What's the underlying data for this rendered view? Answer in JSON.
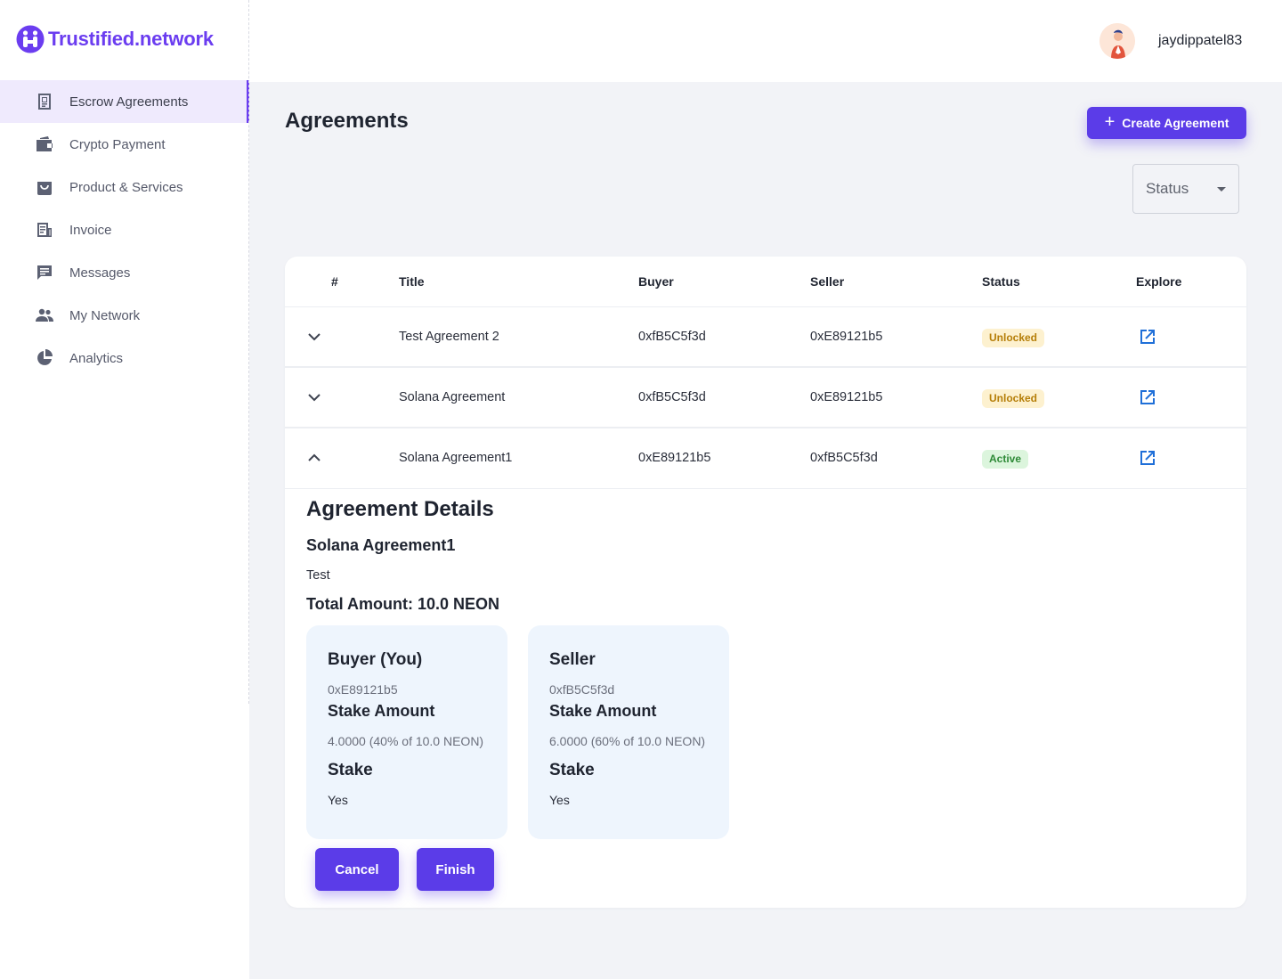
{
  "brand": {
    "name": "Trustified.network",
    "color": "#6b3df0"
  },
  "header": {
    "username": "jaydippatel83"
  },
  "sidebar": {
    "items": [
      {
        "label": "Escrow Agreements",
        "icon": "escrow-document-icon",
        "active": true
      },
      {
        "label": "Crypto Payment",
        "icon": "wallet-icon",
        "active": false
      },
      {
        "label": "Product & Services",
        "icon": "shopping-bag-icon",
        "active": false
      },
      {
        "label": "Invoice",
        "icon": "invoice-icon",
        "active": false
      },
      {
        "label": "Messages",
        "icon": "message-icon",
        "active": false
      },
      {
        "label": "My Network",
        "icon": "people-icon",
        "active": false
      },
      {
        "label": "Analytics",
        "icon": "pie-chart-icon",
        "active": false
      }
    ]
  },
  "main": {
    "title": "Agreements",
    "create_button": "Create Agreement",
    "status_filter": {
      "label": "Status"
    },
    "table": {
      "headers": [
        "#",
        "Title",
        "Buyer",
        "Seller",
        "Status",
        "Explore"
      ],
      "rows": [
        {
          "title": "Test Agreement 2",
          "buyer": "0xfB5C5f3d",
          "seller": "0xE89121b5",
          "status": "Unlocked",
          "expanded": false
        },
        {
          "title": "Solana Agreement",
          "buyer": "0xfB5C5f3d",
          "seller": "0xE89121b5",
          "status": "Unlocked",
          "expanded": false
        },
        {
          "title": "Solana Agreement1",
          "buyer": "0xE89121b5",
          "seller": "0xfB5C5f3d",
          "status": "Active",
          "expanded": true
        }
      ]
    },
    "details": {
      "heading": "Agreement Details",
      "name": "Solana Agreement1",
      "description": "Test",
      "total": "Total Amount: 10.0 NEON",
      "buyer": {
        "role": "Buyer (You)",
        "address": "0xE89121b5",
        "stake_amount_label": "Stake Amount",
        "stake_amount": "4.0000 (40% of 10.0 NEON)",
        "stake_label": "Stake",
        "stake": "Yes"
      },
      "seller": {
        "role": "Seller",
        "address": "0xfB5C5f3d",
        "stake_amount_label": "Stake Amount",
        "stake_amount": "6.0000 (60% of 10.0 NEON)",
        "stake_label": "Stake",
        "stake": "Yes"
      },
      "cancel_button": "Cancel",
      "finish_button": "Finish"
    }
  },
  "colors": {
    "accent": "#5b3ce8",
    "unlocked": "#b57e08",
    "active": "#2e8a37",
    "link": "#1f6fd8"
  }
}
